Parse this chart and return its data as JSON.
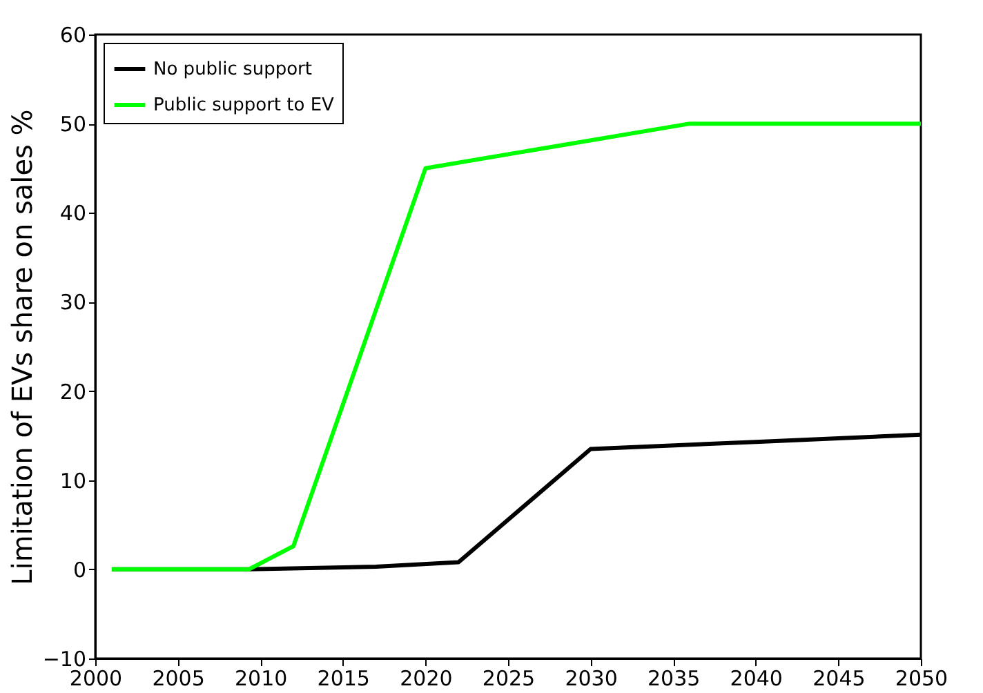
{
  "chart_data": {
    "type": "line",
    "ylabel": "Limitation of EVs share on sales %",
    "series": [
      {
        "name": "No public support",
        "color": "#000000",
        "x": [
          2001,
          2009.3,
          2017,
          2022,
          2030,
          2040,
          2050
        ],
        "values": [
          0,
          0,
          0.3,
          0.8,
          13.5,
          14.3,
          15.1
        ]
      },
      {
        "name": "Public support to EV",
        "color": "#00ff00",
        "x": [
          2001,
          2009.3,
          2012,
          2020,
          2036,
          2050
        ],
        "values": [
          0,
          0,
          2.6,
          45,
          50,
          50
        ]
      }
    ],
    "xlim": [
      2000,
      2050
    ],
    "xticks": [
      2000,
      2005,
      2010,
      2015,
      2020,
      2025,
      2030,
      2035,
      2040,
      2045,
      2050
    ],
    "ylim": [
      -10,
      60
    ],
    "yticks": [
      -10,
      0,
      10,
      20,
      30,
      40,
      50,
      60
    ],
    "grid": false,
    "legend": "top left",
    "line_style": "solid",
    "marker": "none"
  }
}
